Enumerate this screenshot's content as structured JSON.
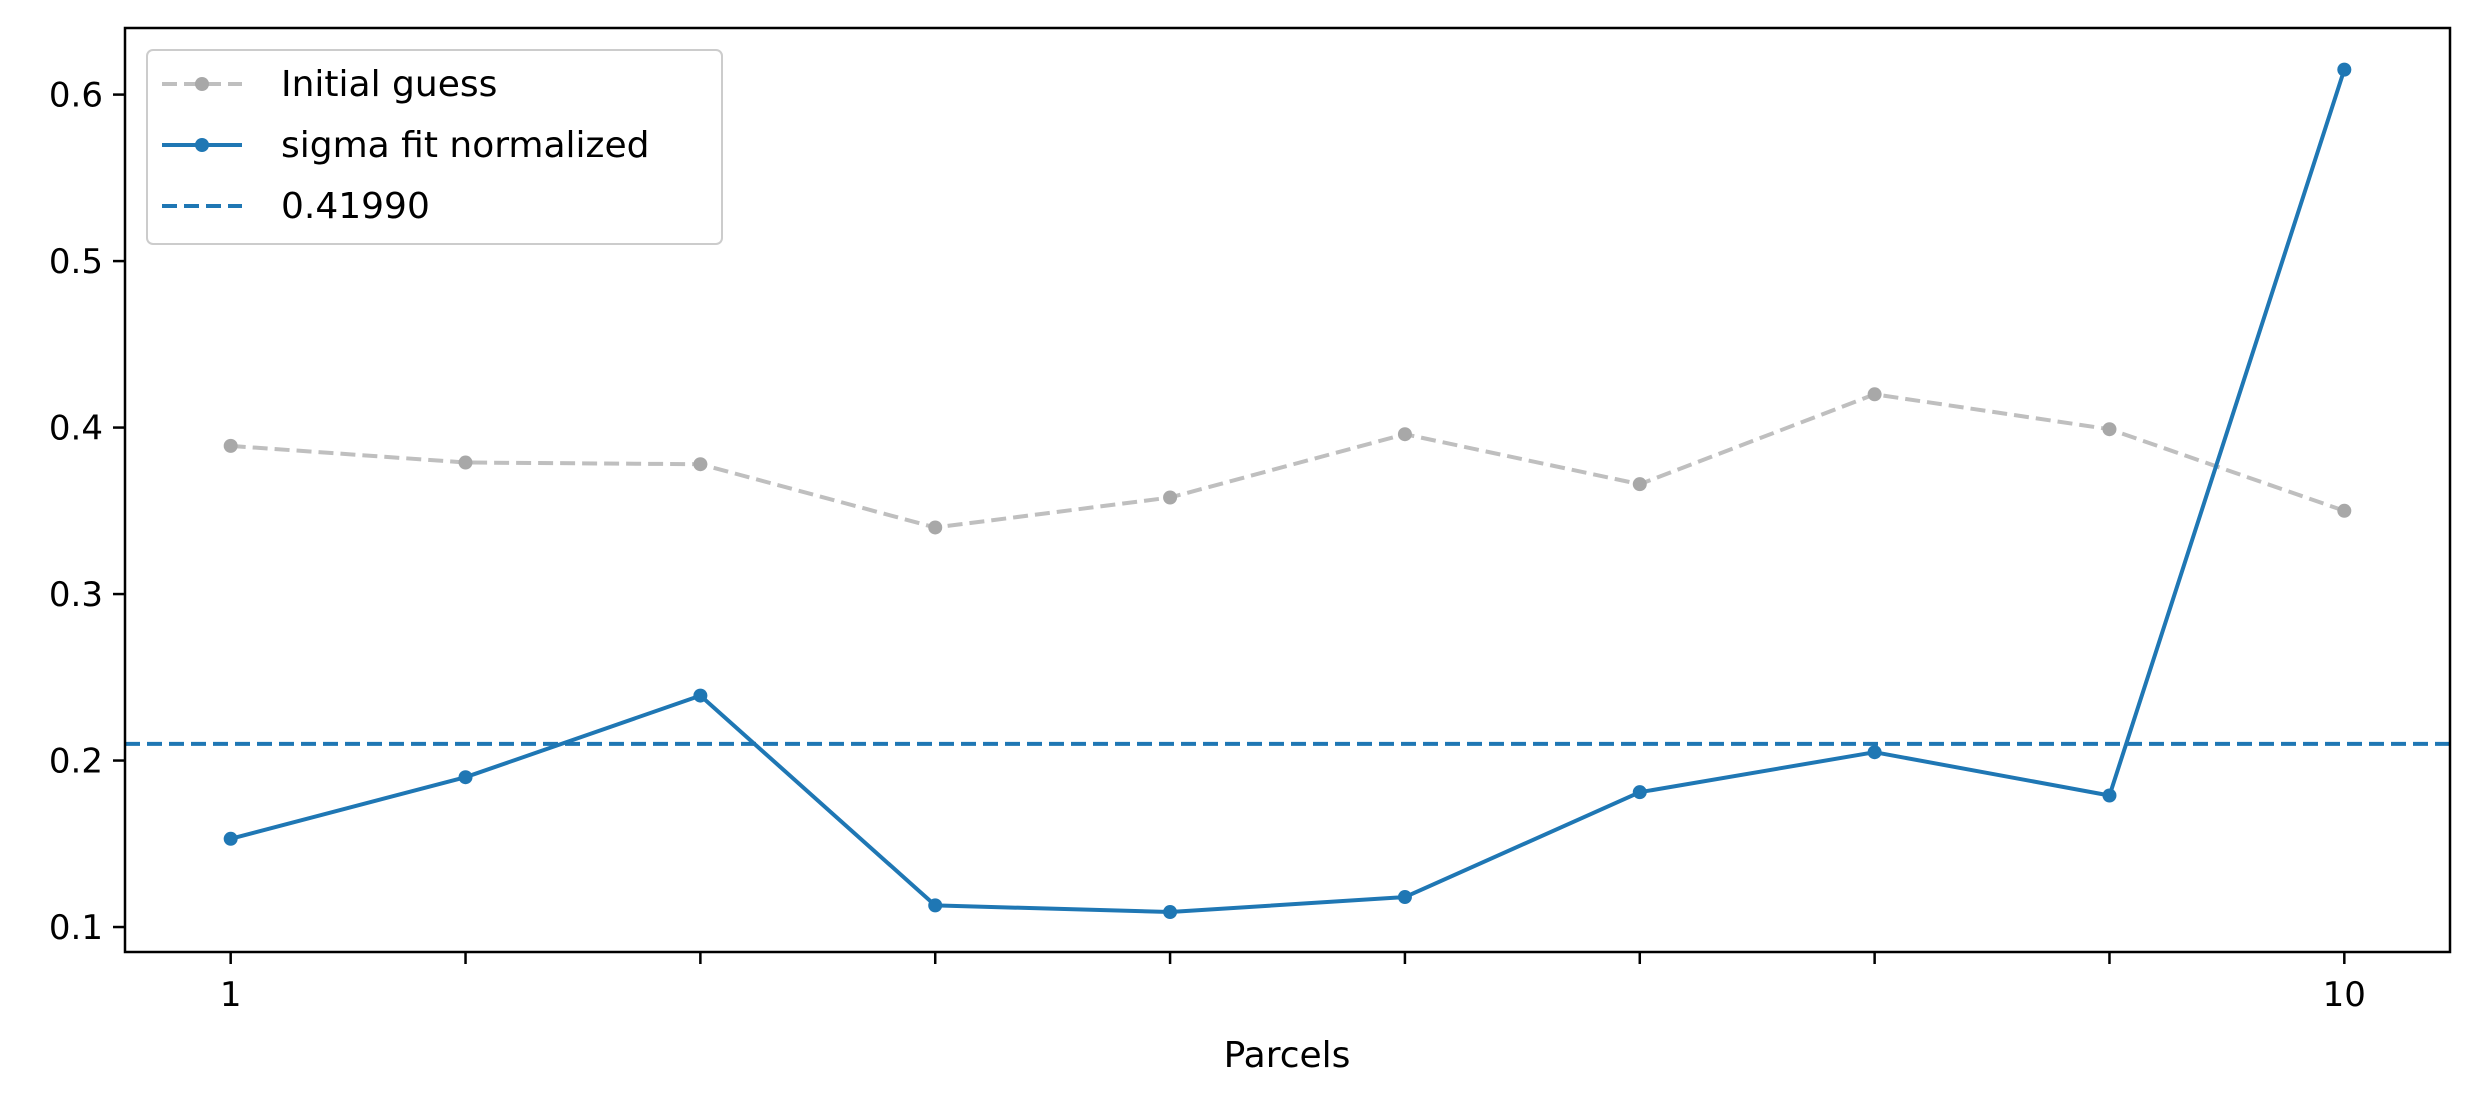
{
  "chart_data": {
    "type": "line",
    "title": "",
    "xlabel": "Parcels",
    "ylabel": "",
    "x": [
      1,
      2,
      3,
      4,
      5,
      6,
      7,
      8,
      9,
      10
    ],
    "xlim": [
      0.55,
      10.45
    ],
    "ylim": [
      0.085,
      0.64
    ],
    "x_tick_positions": [
      1,
      2,
      3,
      4,
      5,
      6,
      7,
      8,
      9,
      10
    ],
    "x_tick_labels": [
      "1",
      "",
      "",
      "",
      "",
      "",
      "",
      "",
      "",
      "10"
    ],
    "y_ticks": [
      0.1,
      0.2,
      0.3,
      0.4,
      0.5,
      0.6
    ],
    "y_tick_labels": [
      "0.1",
      "0.2",
      "0.3",
      "0.4",
      "0.5",
      "0.6"
    ],
    "grid": false,
    "legend_position": "top-left",
    "series": [
      {
        "name": "Initial guess",
        "style": "dashed-markers",
        "color": "#bfbfbf",
        "marker_color": "#a8a8a8",
        "values": [
          0.389,
          0.379,
          0.378,
          0.34,
          0.358,
          0.396,
          0.366,
          0.42,
          0.399,
          0.35
        ]
      },
      {
        "name": "sigma fit normalized",
        "style": "solid-markers",
        "color": "#1f77b4",
        "values": [
          0.153,
          0.19,
          0.239,
          0.113,
          0.109,
          0.118,
          0.181,
          0.205,
          0.179,
          0.615
        ]
      }
    ],
    "hlines": [
      {
        "name": "0.41990",
        "y": 0.21,
        "style": "dashed",
        "color": "#1f77b4"
      }
    ]
  }
}
